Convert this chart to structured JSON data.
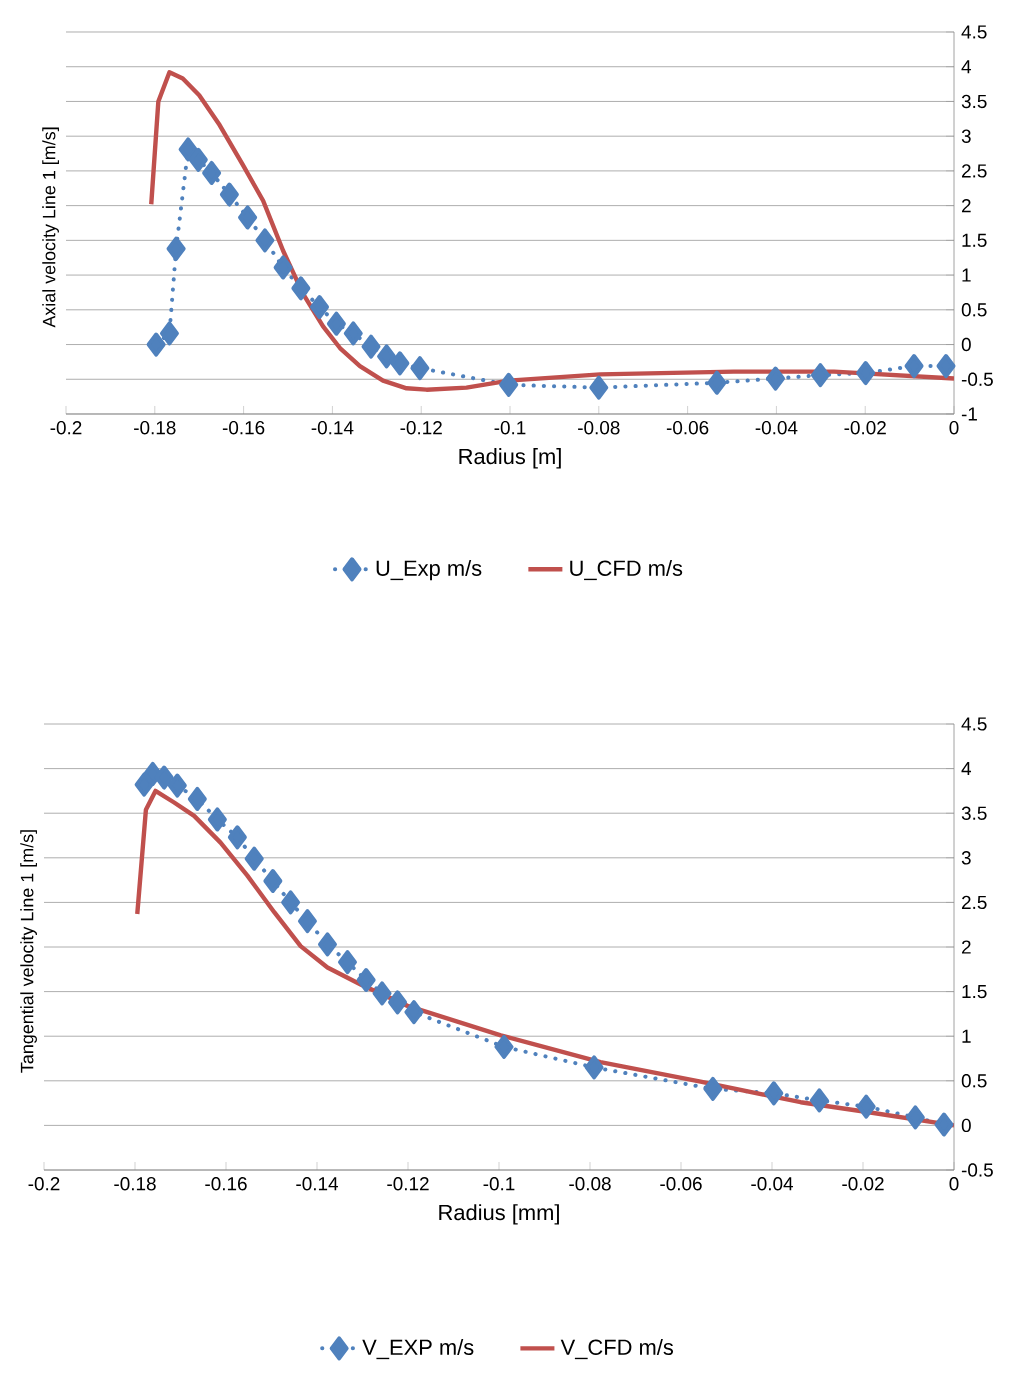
{
  "chart_data": [
    {
      "type": "line",
      "xlabel": "Radius [m]",
      "ylabel": "Axial velocity Line 1 [m/s]",
      "xlim": [
        -0.2,
        0
      ],
      "xticks": [
        -0.2,
        -0.18,
        -0.16,
        -0.14,
        -0.12,
        -0.1,
        -0.08,
        -0.06,
        -0.04,
        -0.02,
        0
      ],
      "ylim": [
        -1,
        4.5
      ],
      "yticks": [
        -1,
        -0.5,
        0,
        0.5,
        1,
        1.5,
        2,
        2.5,
        3,
        3.5,
        4,
        4.5
      ],
      "grid": "y",
      "legend": "bottom",
      "series": [
        {
          "name": "U_Exp m/s",
          "color": "#4f81bd",
          "marker": "diamond",
          "line_style": "dotted",
          "x": [
            -0.1797,
            -0.1767,
            -0.1752,
            -0.1725,
            -0.1702,
            -0.1672,
            -0.1632,
            -0.1591,
            -0.1552,
            -0.1511,
            -0.1471,
            -0.1429,
            -0.1391,
            -0.1353,
            -0.1313,
            -0.1278,
            -0.1248,
            -0.1203,
            -0.1003,
            -0.08,
            -0.0534,
            -0.0402,
            -0.0301,
            -0.0199,
            -0.009,
            -0.0018
          ],
          "values": [
            0.0,
            0.16,
            1.38,
            2.81,
            2.66,
            2.47,
            2.16,
            1.83,
            1.5,
            1.11,
            0.81,
            0.54,
            0.3,
            0.16,
            -0.03,
            -0.17,
            -0.27,
            -0.34,
            -0.58,
            -0.62,
            -0.55,
            -0.49,
            -0.44,
            -0.41,
            -0.31,
            -0.31
          ]
        },
        {
          "name": "U_CFD m/s",
          "color": "#c0504d",
          "marker": "none",
          "line_style": "solid",
          "x": [
            -0.1808,
            -0.1792,
            -0.1767,
            -0.1737,
            -0.17,
            -0.1654,
            -0.1602,
            -0.1556,
            -0.1511,
            -0.1466,
            -0.1421,
            -0.1383,
            -0.1338,
            -0.1286,
            -0.1233,
            -0.1188,
            -0.1098,
            -0.1003,
            -0.0797,
            -0.0496,
            -0.027,
            0
          ],
          "values": [
            2.02,
            3.5,
            3.92,
            3.83,
            3.59,
            3.16,
            2.59,
            2.07,
            1.35,
            0.73,
            0.26,
            -0.05,
            -0.31,
            -0.52,
            -0.63,
            -0.65,
            -0.62,
            -0.52,
            -0.43,
            -0.39,
            -0.39,
            -0.49
          ]
        }
      ]
    },
    {
      "type": "line",
      "xlabel": "Radius [mm]",
      "ylabel": "Tangential velocity Line 1 [m/s]",
      "xlim": [
        -0.2,
        0
      ],
      "xticks": [
        -0.2,
        -0.18,
        -0.16,
        -0.14,
        -0.12,
        -0.1,
        -0.08,
        -0.06,
        -0.04,
        -0.02,
        0
      ],
      "ylim": [
        -0.5,
        4.5
      ],
      "yticks": [
        -0.5,
        0,
        0.5,
        1,
        1.5,
        2,
        2.5,
        3,
        3.5,
        4,
        4.5
      ],
      "grid": "y",
      "legend": "bottom",
      "series": [
        {
          "name": "V_EXP m/s",
          "color": "#4f81bd",
          "marker": "diamond",
          "line_style": "dotted",
          "x": [
            -0.178,
            -0.1761,
            -0.1736,
            -0.1707,
            -0.1663,
            -0.1619,
            -0.1575,
            -0.1538,
            -0.1497,
            -0.1458,
            -0.1421,
            -0.1377,
            -0.1333,
            -0.1292,
            -0.1257,
            -0.1223,
            -0.1187,
            -0.0989,
            -0.0791,
            -0.053,
            -0.0396,
            -0.0296,
            -0.0193,
            -0.0085,
            -0.0022
          ],
          "values": [
            3.82,
            3.94,
            3.9,
            3.81,
            3.66,
            3.43,
            3.23,
            2.99,
            2.74,
            2.5,
            2.29,
            2.03,
            1.83,
            1.63,
            1.48,
            1.38,
            1.27,
            0.88,
            0.65,
            0.41,
            0.36,
            0.28,
            0.21,
            0.09,
            0.01
          ]
        },
        {
          "name": "V_CFD m/s",
          "color": "#c0504d",
          "marker": "none",
          "line_style": "solid",
          "x": [
            -0.1795,
            -0.1776,
            -0.1755,
            -0.1714,
            -0.167,
            -0.1612,
            -0.1553,
            -0.1494,
            -0.1436,
            -0.1377,
            -0.1304,
            -0.1201,
            -0.0996,
            -0.0777,
            -0.0557,
            -0.0337,
            -0.0191,
            0
          ],
          "values": [
            2.37,
            3.54,
            3.75,
            3.62,
            3.47,
            3.17,
            2.8,
            2.39,
            2.01,
            1.77,
            1.58,
            1.34,
            1.01,
            0.71,
            0.49,
            0.26,
            0.15,
            0
          ]
        }
      ]
    }
  ]
}
